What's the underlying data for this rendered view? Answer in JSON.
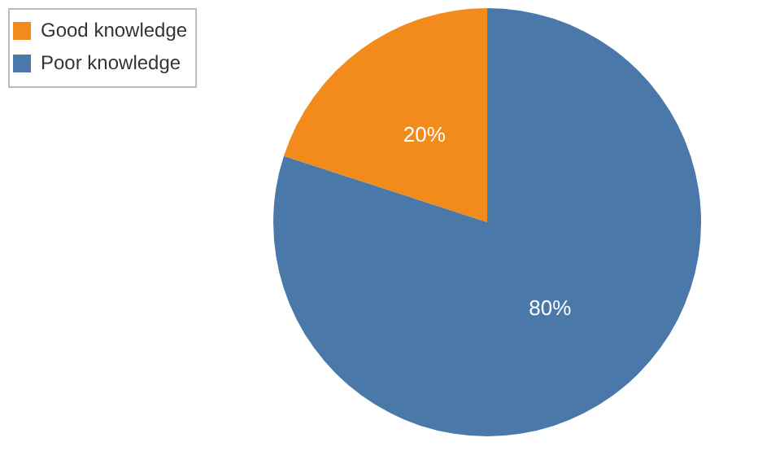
{
  "chart_data": {
    "type": "pie",
    "categories": [
      "Good knowledge",
      "Poor knowledge"
    ],
    "values": [
      20,
      80
    ],
    "colors": [
      "#f28a1c",
      "#4a78a8"
    ],
    "value_labels": [
      "20%",
      "80%"
    ],
    "legend": "top left"
  }
}
